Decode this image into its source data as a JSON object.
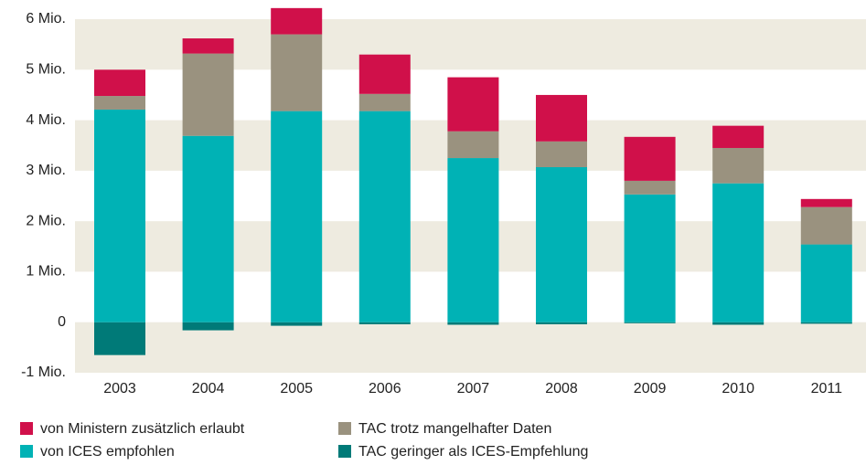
{
  "chart_data": {
    "type": "stacked_bar",
    "categories": [
      "2003",
      "2004",
      "2005",
      "2006",
      "2007",
      "2008",
      "2009",
      "2010",
      "2011"
    ],
    "series": [
      {
        "name": "von Ministern zusätzlich erlaubt",
        "color": "#d0104a",
        "values": [
          0.52,
          0.3,
          0.52,
          0.78,
          1.07,
          0.92,
          0.87,
          0.44,
          0.16
        ]
      },
      {
        "name": "TAC trotz mangelhafter Daten",
        "color": "#9a927f",
        "values": [
          0.27,
          1.63,
          1.52,
          0.34,
          0.53,
          0.51,
          0.27,
          0.7,
          0.74
        ]
      },
      {
        "name": "von ICES empfohlen",
        "color": "#00b2b5",
        "values": [
          4.21,
          3.69,
          4.18,
          4.18,
          3.25,
          3.07,
          2.53,
          2.75,
          1.54
        ]
      },
      {
        "name": "TAC geringer als ICES-Empfehlung",
        "color": "#007a78",
        "values": [
          -0.65,
          -0.16,
          -0.07,
          -0.04,
          -0.05,
          -0.04,
          -0.02,
          -0.05,
          -0.03
        ]
      }
    ],
    "ylim": [
      -1,
      6.38
    ],
    "yticks": [
      {
        "value": -1,
        "label": "-1 Mio."
      },
      0,
      {
        "value": 1,
        "label": "1 Mio."
      },
      {
        "value": 2,
        "label": "2 Mio."
      },
      {
        "value": 3,
        "label": "3 Mio."
      },
      {
        "value": 4,
        "label": "4 Mio."
      },
      {
        "value": 5,
        "label": "5 Mio."
      },
      {
        "value": 6,
        "label": "6 Mio."
      }
    ],
    "band_color": "#eeebe0"
  }
}
